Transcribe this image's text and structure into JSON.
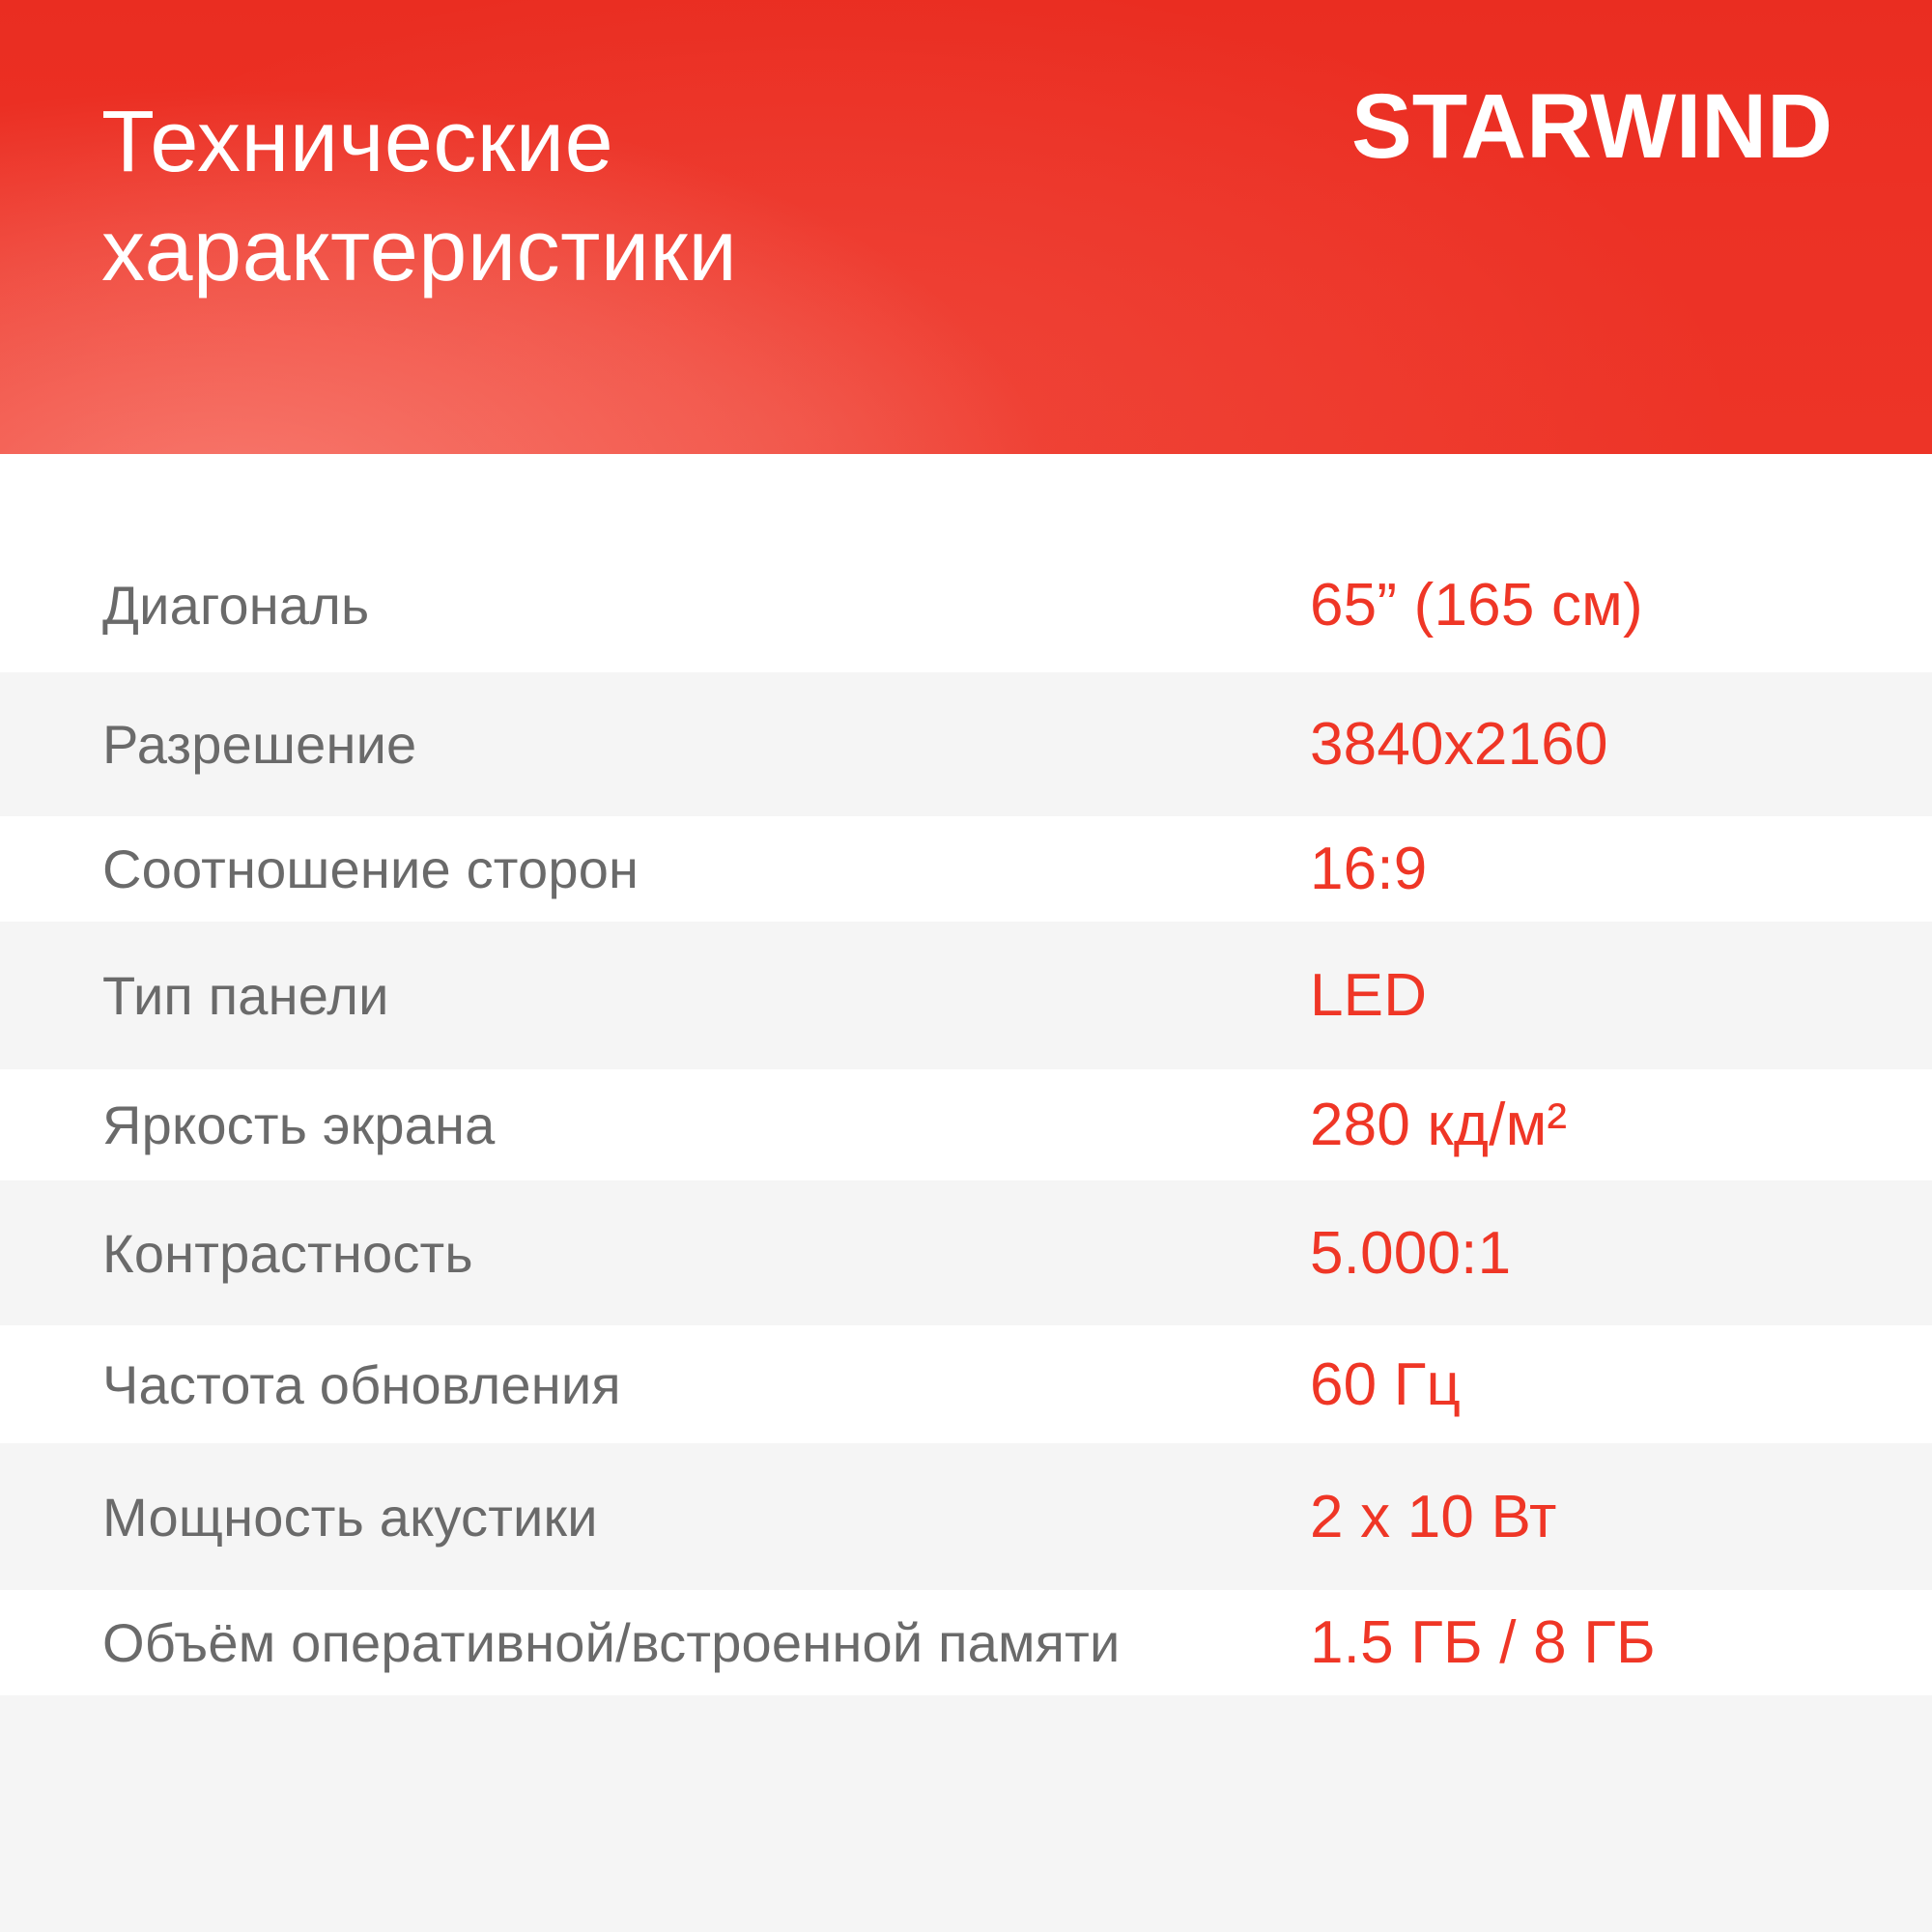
{
  "header": {
    "title_line1": "Технические",
    "title_line2": "характеристики",
    "logo_text": "STARWIND",
    "title_color": "#ffffff",
    "background_red": "#ed3124",
    "glow_color": "#ffaca2"
  },
  "specs": {
    "label_color": "#6a6a6a",
    "value_color": "#ef3626",
    "alt_row_background": "#f5f5f5",
    "rows": [
      {
        "label": "Диагональ",
        "value": "65” (165 см)"
      },
      {
        "label": "Разрешение",
        "value": "3840x2160"
      },
      {
        "label": "Соотношение сторон",
        "value": "16:9"
      },
      {
        "label": "Тип панели",
        "value": "LED"
      },
      {
        "label": "Яркость экрана",
        "value": "280 кд/м²"
      },
      {
        "label": "Контрастность",
        "value": "5.000:1"
      },
      {
        "label": "Частота обновления",
        "value": "60 Гц"
      },
      {
        "label": "Мощность акустики",
        "value": "2 x 10 Вт"
      },
      {
        "label": "Объём оперативной/встроенной памяти",
        "value": "1.5 ГБ / 8 ГБ"
      }
    ]
  }
}
